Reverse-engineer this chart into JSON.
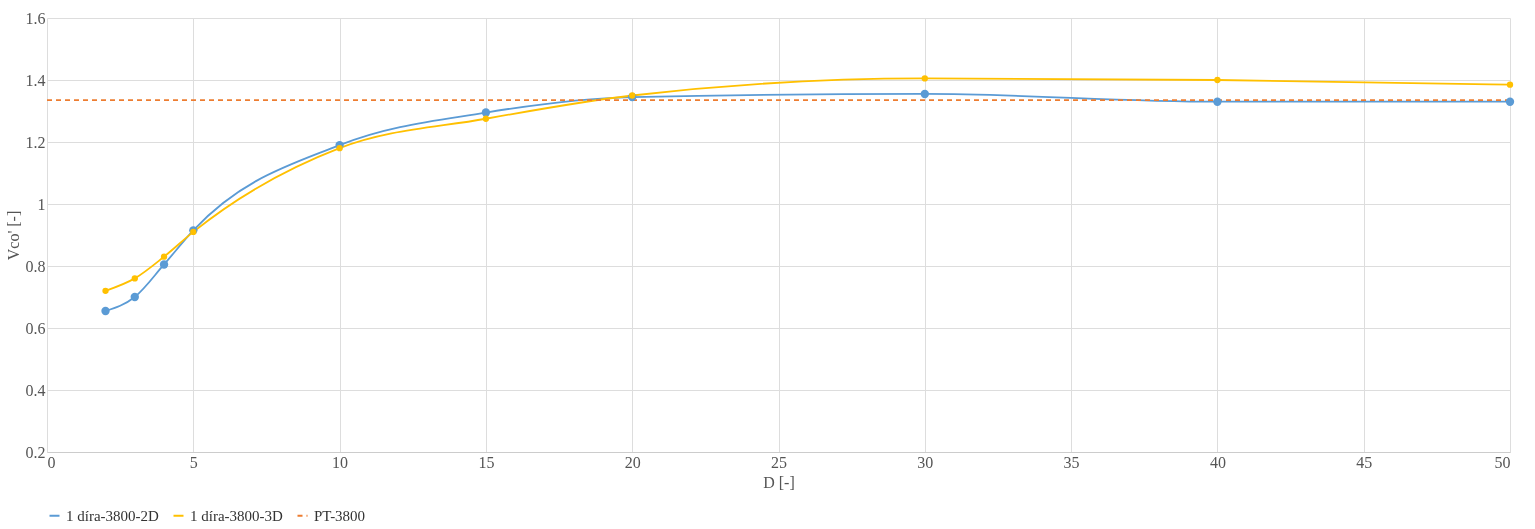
{
  "chart_data": {
    "type": "line",
    "xlabel": "D [-]",
    "ylabel": "Vco' [-]",
    "xlim": [
      0,
      50
    ],
    "xticks": [
      0,
      5,
      10,
      15,
      20,
      25,
      30,
      35,
      40,
      45,
      50
    ],
    "ylim": [
      0.2,
      1.6
    ],
    "yticks": [
      0.2,
      0.4,
      0.6,
      0.8,
      {
        "value": 1,
        "label": "1"
      },
      1.2,
      1.4,
      1.6
    ],
    "grid": true,
    "legend": "bottom",
    "series": [
      {
        "name": "1 díra-3800-2D",
        "color": "#5b9bd5",
        "marker": "circle",
        "line_style": "solid",
        "x": [
          2,
          3,
          4,
          5,
          10,
          15,
          20,
          30,
          40,
          50
        ],
        "values": [
          0.655,
          0.7,
          0.805,
          0.915,
          1.19,
          1.295,
          1.345,
          1.355,
          1.33,
          1.33
        ]
      },
      {
        "name": "1 díra-3800-3D",
        "color": "#ffc000",
        "marker": "circle",
        "line_style": "solid",
        "x": [
          2,
          3,
          4,
          5,
          10,
          15,
          20,
          30,
          40,
          50
        ],
        "values": [
          0.72,
          0.76,
          0.83,
          0.91,
          1.18,
          1.275,
          1.35,
          1.405,
          1.4,
          1.385
        ]
      },
      {
        "name": "PT-3800",
        "color": "#ed7d31",
        "marker": "none",
        "line_style": "dashed",
        "x": [
          0,
          50
        ],
        "values": [
          1.335,
          1.335
        ]
      }
    ]
  }
}
